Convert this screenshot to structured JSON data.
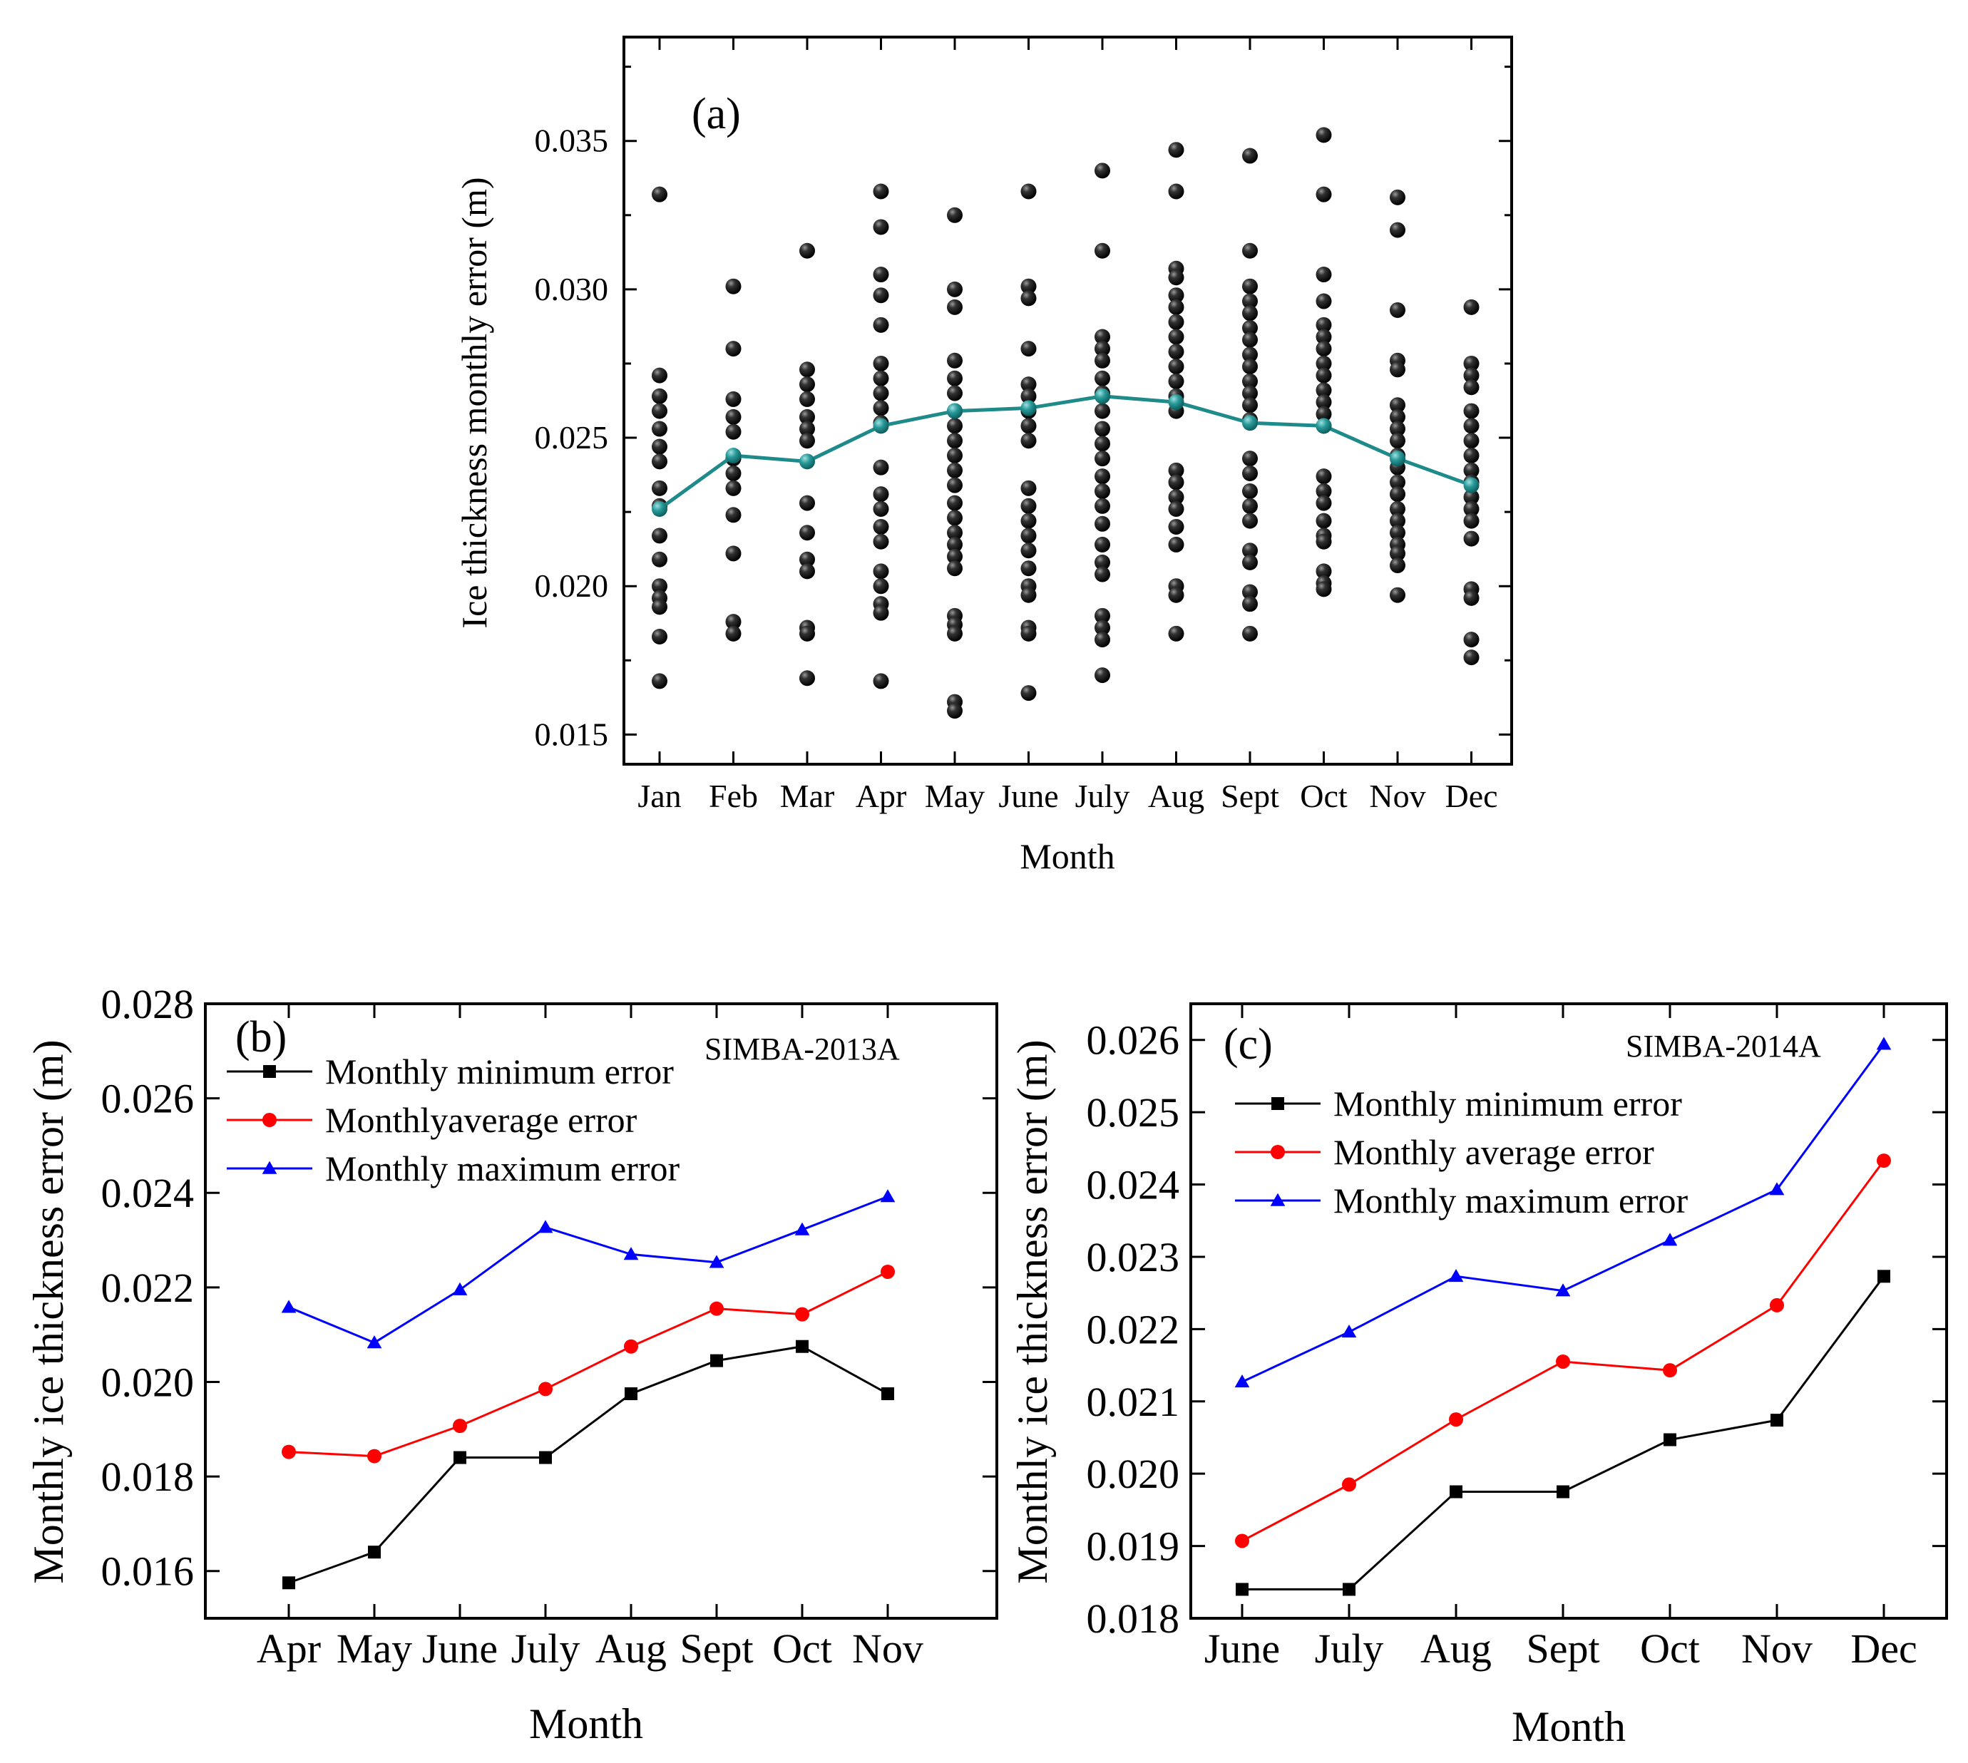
{
  "chart_data": [
    {
      "id": "a",
      "type": "scatter",
      "panel_label": "(a)",
      "title": "",
      "xlabel": "Month",
      "ylabel": "Ice thickness monthly error (m)",
      "categories": [
        "Jan",
        "Feb",
        "Mar",
        "Apr",
        "May",
        "June",
        "July",
        "Aug",
        "Sept",
        "Oct",
        "Nov",
        "Dec"
      ],
      "ylim": [
        0.014,
        0.0385
      ],
      "yticks": [
        "0.015",
        "0.020",
        "0.025",
        "0.030",
        "0.035"
      ],
      "ytick_values": [
        0.015,
        0.02,
        0.025,
        0.03,
        0.035
      ],
      "scatter_points": [
        [
          0.0332,
          0.0271,
          0.0264,
          0.0259,
          0.0253,
          0.0247,
          0.0242,
          0.0233,
          0.0227,
          0.0217,
          0.0209,
          0.02,
          0.0196,
          0.0193,
          0.0183,
          0.0168
        ],
        [
          0.0301,
          0.028,
          0.0263,
          0.0257,
          0.0252,
          0.0243,
          0.0238,
          0.0233,
          0.0224,
          0.0211,
          0.0188,
          0.0184
        ],
        [
          0.0313,
          0.0273,
          0.0268,
          0.0263,
          0.0257,
          0.0253,
          0.0249,
          0.0228,
          0.0218,
          0.0209,
          0.0205,
          0.0186,
          0.0184,
          0.0169
        ],
        [
          0.0333,
          0.0321,
          0.0305,
          0.0298,
          0.0288,
          0.0275,
          0.027,
          0.0265,
          0.026,
          0.0255,
          0.024,
          0.0231,
          0.0226,
          0.022,
          0.0215,
          0.0205,
          0.02,
          0.0194,
          0.0191,
          0.0168
        ],
        [
          0.0325,
          0.03,
          0.0294,
          0.0276,
          0.027,
          0.0265,
          0.0259,
          0.0254,
          0.0249,
          0.0244,
          0.0239,
          0.0234,
          0.0228,
          0.0223,
          0.0218,
          0.0214,
          0.021,
          0.0206,
          0.019,
          0.0187,
          0.0184,
          0.0161,
          0.0158
        ],
        [
          0.0333,
          0.0301,
          0.0297,
          0.028,
          0.0268,
          0.0264,
          0.0259,
          0.0254,
          0.0249,
          0.0233,
          0.0227,
          0.0222,
          0.0217,
          0.0212,
          0.0206,
          0.02,
          0.0197,
          0.0186,
          0.0184,
          0.0164
        ],
        [
          0.034,
          0.0313,
          0.0284,
          0.028,
          0.0276,
          0.027,
          0.0265,
          0.0259,
          0.0253,
          0.0248,
          0.0243,
          0.0237,
          0.0232,
          0.0227,
          0.0221,
          0.0214,
          0.0208,
          0.0204,
          0.019,
          0.0186,
          0.0182,
          0.017
        ],
        [
          0.0347,
          0.0333,
          0.0307,
          0.0304,
          0.0298,
          0.0294,
          0.0289,
          0.0284,
          0.0279,
          0.0274,
          0.0269,
          0.0264,
          0.0259,
          0.0239,
          0.0235,
          0.023,
          0.0226,
          0.022,
          0.0214,
          0.02,
          0.0197,
          0.0184
        ],
        [
          0.0345,
          0.0313,
          0.0301,
          0.0296,
          0.0292,
          0.0287,
          0.0283,
          0.0278,
          0.0274,
          0.0269,
          0.0265,
          0.0261,
          0.0256,
          0.0243,
          0.0238,
          0.0232,
          0.0227,
          0.0222,
          0.0212,
          0.0208,
          0.0198,
          0.0194,
          0.0184
        ],
        [
          0.0352,
          0.0332,
          0.0305,
          0.0296,
          0.0288,
          0.0284,
          0.028,
          0.0275,
          0.0271,
          0.0266,
          0.0262,
          0.0258,
          0.0254,
          0.0237,
          0.0232,
          0.0228,
          0.0222,
          0.0217,
          0.0215,
          0.0205,
          0.0201,
          0.0199
        ],
        [
          0.0331,
          0.032,
          0.0293,
          0.0276,
          0.0273,
          0.0261,
          0.0257,
          0.0253,
          0.0249,
          0.0244,
          0.024,
          0.0235,
          0.0231,
          0.0226,
          0.0222,
          0.0218,
          0.0214,
          0.0211,
          0.0207,
          0.0197
        ],
        [
          0.0294,
          0.0275,
          0.0271,
          0.0267,
          0.0259,
          0.0254,
          0.0249,
          0.0244,
          0.0239,
          0.0235,
          0.023,
          0.0226,
          0.0222,
          0.0216,
          0.0199,
          0.0196,
          0.0182,
          0.0176
        ]
      ],
      "series": [
        {
          "name": "Monthly average",
          "color": "#1f8a8a",
          "values": [
            0.0226,
            0.0244,
            0.0242,
            0.0254,
            0.0259,
            0.026,
            0.0264,
            0.0262,
            0.0255,
            0.0254,
            0.0243,
            0.0234
          ]
        }
      ]
    },
    {
      "id": "b",
      "type": "line",
      "panel_label": "(b)",
      "dataset_label": "SIMBA-2013A",
      "xlabel": "Month",
      "ylabel": "Monthly ice thickness error (m)",
      "categories": [
        "Apr",
        "May",
        "June",
        "July",
        "Aug",
        "Sept",
        "Oct",
        "Nov"
      ],
      "ylim": [
        0.015,
        0.028
      ],
      "yticks": [
        "0.016",
        "0.018",
        "0.020",
        "0.022",
        "0.024",
        "0.026",
        "0.028"
      ],
      "ytick_values": [
        0.016,
        0.018,
        0.02,
        0.022,
        0.024,
        0.026,
        0.028
      ],
      "legend_position": "top-left",
      "series": [
        {
          "name": "Monthly minimum error",
          "color": "#000000",
          "marker": "square",
          "values": [
            0.01575,
            0.0164,
            0.0184,
            0.0184,
            0.01975,
            0.02045,
            0.02075,
            0.01975
          ]
        },
        {
          "name": "Monthlyaverage error",
          "color": "#ff0000",
          "marker": "circle",
          "values": [
            0.01852,
            0.01843,
            0.01907,
            0.01985,
            0.02075,
            0.02155,
            0.02143,
            0.02233
          ]
        },
        {
          "name": "Monthly maximum error",
          "color": "#0000ff",
          "marker": "triangle",
          "values": [
            0.02158,
            0.02083,
            0.02195,
            0.02327,
            0.0227,
            0.02253,
            0.02322,
            0.02392
          ]
        }
      ]
    },
    {
      "id": "c",
      "type": "line",
      "panel_label": "(c)",
      "dataset_label": "SIMBA-2014A",
      "xlabel": "Month",
      "ylabel": "Monthly ice thickness error (m)",
      "categories": [
        "June",
        "July",
        "Aug",
        "Sept",
        "Oct",
        "Nov",
        "Dec"
      ],
      "ylim": [
        0.018,
        0.0265
      ],
      "yticks": [
        "0.018",
        "0.019",
        "0.020",
        "0.021",
        "0.022",
        "0.023",
        "0.024",
        "0.025",
        "0.026"
      ],
      "ytick_values": [
        0.018,
        0.019,
        0.02,
        0.021,
        0.022,
        0.023,
        0.024,
        0.025,
        0.026
      ],
      "legend_position": "top-left",
      "series": [
        {
          "name": "Monthly minimum error",
          "color": "#000000",
          "marker": "square",
          "values": [
            0.0184,
            0.0184,
            0.01975,
            0.01975,
            0.02047,
            0.02074,
            0.02273
          ]
        },
        {
          "name": "Monthly average error",
          "color": "#ff0000",
          "marker": "circle",
          "values": [
            0.01907,
            0.01985,
            0.02075,
            0.02155,
            0.02143,
            0.02233,
            0.02433
          ]
        },
        {
          "name": "Monthly maximum error",
          "color": "#0000ff",
          "marker": "triangle",
          "values": [
            0.02127,
            0.02196,
            0.02273,
            0.02253,
            0.02323,
            0.02393,
            0.02594
          ]
        }
      ]
    }
  ]
}
